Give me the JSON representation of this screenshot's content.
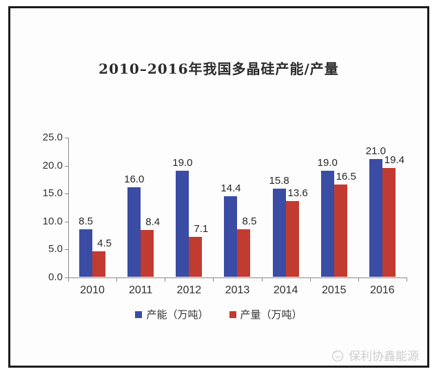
{
  "title": "2010–2016年我国多晶硅产能/产量",
  "chart_data": {
    "type": "bar",
    "categories": [
      "2010",
      "2011",
      "2012",
      "2013",
      "2014",
      "2015",
      "2016"
    ],
    "series": [
      {
        "name": "产能（万吨）",
        "color": "#3a4ca3",
        "values": [
          8.5,
          16.0,
          19.0,
          14.4,
          15.8,
          19.0,
          21.0
        ]
      },
      {
        "name": "产量（万吨）",
        "color": "#c23b31",
        "values": [
          4.5,
          8.4,
          7.1,
          8.5,
          13.6,
          16.5,
          19.4
        ]
      }
    ],
    "title": "2010–2016年我国多晶硅产能/产量",
    "xlabel": "",
    "ylabel": "",
    "ylim": [
      0,
      25
    ],
    "ytick_step": 5,
    "ytick_labels": [
      "0.0",
      "5.0",
      "10.0",
      "15.0",
      "20.0",
      "25.0"
    ],
    "grid": false,
    "legend_position": "bottom",
    "value_labels": true,
    "value_label_format": "one-decimal"
  },
  "watermark": {
    "text": "保利协鑫能源",
    "logo": "gcl-circle-logo",
    "color": "#cdcdcd"
  },
  "frame": {
    "border_color": "#1b1b1b",
    "background": "#fdfdfd"
  }
}
